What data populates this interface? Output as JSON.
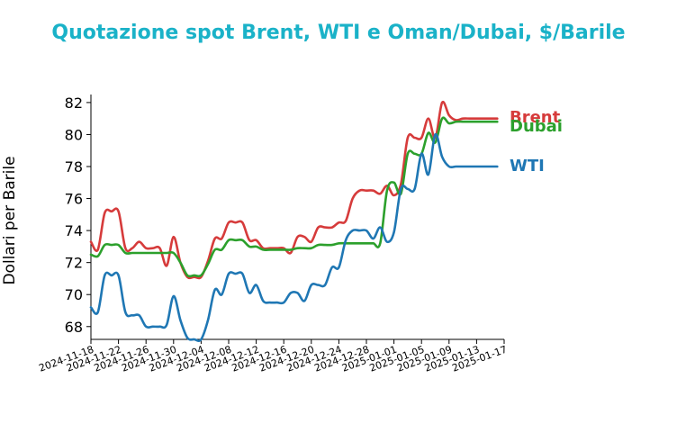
{
  "chart_data": {
    "type": "line",
    "title": "Quotazione spot Brent, WTI e Oman/Dubai, $/Barile",
    "xlabel": "",
    "ylabel": "Dollari per Barile",
    "xlim": [
      "2024-11-18",
      "2025-01-17"
    ],
    "ylim": [
      67.2,
      82.5
    ],
    "x_ticks": [
      "2024-11-18",
      "2024-11-22",
      "2024-11-26",
      "2024-11-30",
      "2024-12-04",
      "2024-12-08",
      "2024-12-12",
      "2024-12-16",
      "2024-12-20",
      "2024-12-24",
      "2024-12-28",
      "2025-01-01",
      "2025-01-05",
      "2025-01-09",
      "2025-01-13",
      "2025-01-17"
    ],
    "y_ticks": [
      68,
      70,
      72,
      74,
      76,
      78,
      80,
      82
    ],
    "grid": false,
    "legend_placement": "series labels at right end of lines",
    "title_color": "#1ab2c8",
    "series": [
      {
        "name": "Brent",
        "color": "#d63b3b",
        "x": [
          "2024-11-18",
          "2024-11-19",
          "2024-11-20",
          "2024-11-21",
          "2024-11-22",
          "2024-11-23",
          "2024-11-24",
          "2024-11-25",
          "2024-11-26",
          "2024-11-27",
          "2024-11-28",
          "2024-11-29",
          "2024-11-30",
          "2024-12-01",
          "2024-12-02",
          "2024-12-03",
          "2024-12-04",
          "2024-12-05",
          "2024-12-06",
          "2024-12-07",
          "2024-12-08",
          "2024-12-09",
          "2024-12-10",
          "2024-12-11",
          "2024-12-12",
          "2024-12-13",
          "2024-12-14",
          "2024-12-15",
          "2024-12-16",
          "2024-12-17",
          "2024-12-18",
          "2024-12-19",
          "2024-12-20",
          "2024-12-21",
          "2024-12-22",
          "2024-12-23",
          "2024-12-24",
          "2024-12-25",
          "2024-12-26",
          "2024-12-27",
          "2024-12-28",
          "2024-12-29",
          "2024-12-30",
          "2024-12-31",
          "2025-01-01",
          "2025-01-02",
          "2025-01-03",
          "2025-01-04",
          "2025-01-05",
          "2025-01-06",
          "2025-01-07",
          "2025-01-08",
          "2025-01-09",
          "2025-01-10",
          "2025-01-11",
          "2025-01-12",
          "2025-01-13",
          "2025-01-14",
          "2025-01-15",
          "2025-01-16"
        ],
        "values": [
          73.3,
          72.8,
          75.1,
          75.2,
          75.2,
          72.9,
          72.9,
          73.3,
          72.9,
          72.9,
          72.9,
          71.8,
          73.6,
          72.0,
          71.1,
          71.1,
          71.1,
          72.1,
          73.5,
          73.5,
          74.5,
          74.5,
          74.5,
          73.4,
          73.4,
          72.9,
          72.9,
          72.9,
          72.9,
          72.6,
          73.6,
          73.6,
          73.3,
          74.2,
          74.2,
          74.2,
          74.5,
          74.6,
          76.0,
          76.5,
          76.5,
          76.5,
          76.3,
          76.8,
          76.2,
          76.9,
          79.8,
          79.8,
          79.8,
          81.0,
          79.8,
          82.0,
          81.2,
          80.9,
          81.0,
          81.0,
          81.0,
          81.0,
          81.0,
          81.0
        ]
      },
      {
        "name": "Dubai",
        "color": "#2ca02c",
        "x": [
          "2024-11-18",
          "2024-11-19",
          "2024-11-20",
          "2024-11-21",
          "2024-11-22",
          "2024-11-23",
          "2024-11-24",
          "2024-11-25",
          "2024-11-26",
          "2024-11-27",
          "2024-11-28",
          "2024-11-29",
          "2024-11-30",
          "2024-12-01",
          "2024-12-02",
          "2024-12-03",
          "2024-12-04",
          "2024-12-05",
          "2024-12-06",
          "2024-12-07",
          "2024-12-08",
          "2024-12-09",
          "2024-12-10",
          "2024-12-11",
          "2024-12-12",
          "2024-12-13",
          "2024-12-14",
          "2024-12-15",
          "2024-12-16",
          "2024-12-17",
          "2024-12-18",
          "2024-12-19",
          "2024-12-20",
          "2024-12-21",
          "2024-12-22",
          "2024-12-23",
          "2024-12-24",
          "2024-12-25",
          "2024-12-26",
          "2024-12-27",
          "2024-12-28",
          "2024-12-29",
          "2024-12-30",
          "2024-12-31",
          "2025-01-01",
          "2025-01-02",
          "2025-01-03",
          "2025-01-04",
          "2025-01-05",
          "2025-01-06",
          "2025-01-07",
          "2025-01-08",
          "2025-01-09",
          "2025-01-10",
          "2025-01-11",
          "2025-01-12",
          "2025-01-13",
          "2025-01-14",
          "2025-01-15",
          "2025-01-16"
        ],
        "values": [
          72.5,
          72.4,
          73.1,
          73.1,
          73.1,
          72.6,
          72.6,
          72.6,
          72.6,
          72.6,
          72.6,
          72.6,
          72.6,
          72.0,
          71.2,
          71.2,
          71.2,
          71.9,
          72.8,
          72.8,
          73.4,
          73.4,
          73.4,
          73.0,
          73.0,
          72.8,
          72.8,
          72.8,
          72.8,
          72.8,
          72.9,
          72.9,
          72.9,
          73.1,
          73.1,
          73.1,
          73.2,
          73.2,
          73.2,
          73.2,
          73.2,
          73.2,
          73.2,
          76.5,
          77.0,
          76.3,
          78.8,
          78.8,
          78.8,
          80.1,
          79.5,
          81.0,
          80.7,
          80.8,
          80.8,
          80.8,
          80.8,
          80.8,
          80.8,
          80.8
        ]
      },
      {
        "name": "WTI",
        "color": "#1f77b4",
        "x": [
          "2024-11-18",
          "2024-11-19",
          "2024-11-20",
          "2024-11-21",
          "2024-11-22",
          "2024-11-23",
          "2024-11-24",
          "2024-11-25",
          "2024-11-26",
          "2024-11-27",
          "2024-11-28",
          "2024-11-29",
          "2024-11-30",
          "2024-12-01",
          "2024-12-02",
          "2024-12-03",
          "2024-12-04",
          "2024-12-05",
          "2024-12-06",
          "2024-12-07",
          "2024-12-08",
          "2024-12-09",
          "2024-12-10",
          "2024-12-11",
          "2024-12-12",
          "2024-12-13",
          "2024-12-14",
          "2024-12-15",
          "2024-12-16",
          "2024-12-17",
          "2024-12-18",
          "2024-12-19",
          "2024-12-20",
          "2024-12-21",
          "2024-12-22",
          "2024-12-23",
          "2024-12-24",
          "2024-12-25",
          "2024-12-26",
          "2024-12-27",
          "2024-12-28",
          "2024-12-29",
          "2024-12-30",
          "2024-12-31",
          "2025-01-01",
          "2025-01-02",
          "2025-01-03",
          "2025-01-04",
          "2025-01-05",
          "2025-01-06",
          "2025-01-07",
          "2025-01-08",
          "2025-01-09",
          "2025-01-10",
          "2025-01-11",
          "2025-01-12",
          "2025-01-13",
          "2025-01-14",
          "2025-01-15",
          "2025-01-16"
        ],
        "values": [
          69.2,
          68.9,
          71.2,
          71.2,
          71.2,
          68.9,
          68.7,
          68.7,
          68.0,
          68.0,
          68.0,
          68.1,
          69.9,
          68.4,
          67.3,
          67.2,
          67.2,
          68.4,
          70.3,
          70.0,
          71.3,
          71.3,
          71.3,
          70.1,
          70.6,
          69.6,
          69.5,
          69.5,
          69.5,
          70.1,
          70.1,
          69.6,
          70.6,
          70.6,
          70.6,
          71.7,
          71.7,
          73.4,
          74.0,
          74.0,
          74.0,
          73.5,
          74.2,
          73.3,
          73.9,
          76.6,
          76.6,
          76.6,
          78.8,
          77.5,
          80.0,
          78.6,
          78.0,
          78.0,
          78.0,
          78.0,
          78.0,
          78.0,
          78.0,
          78.0
        ]
      }
    ]
  }
}
